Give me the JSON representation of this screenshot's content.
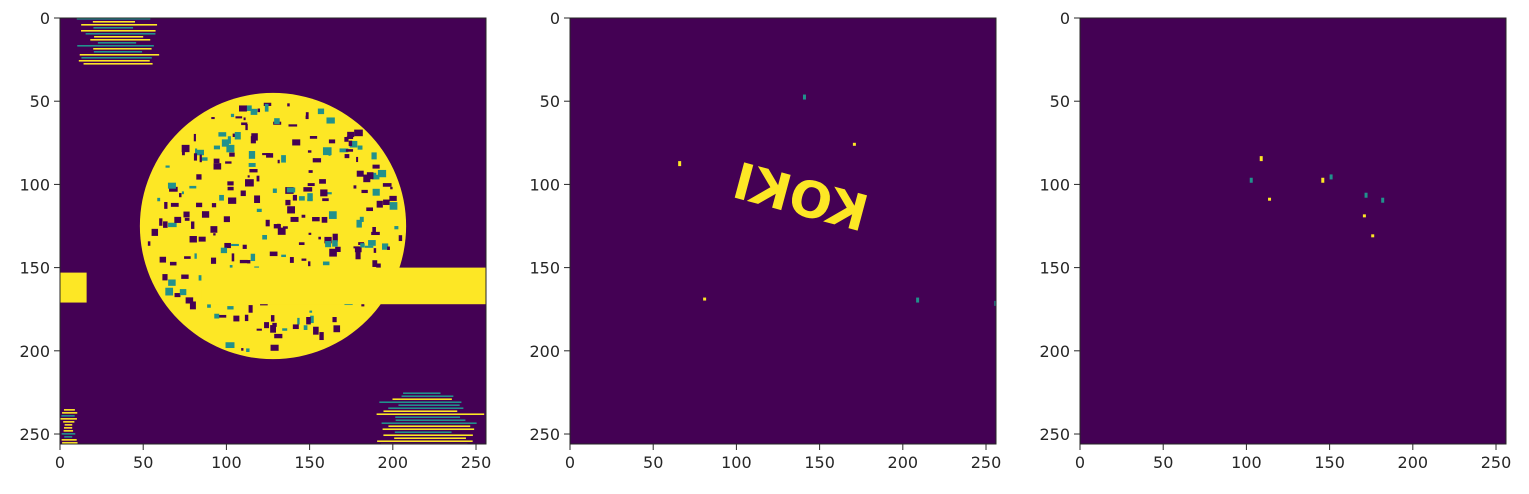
{
  "figure": {
    "background": "#ffffff",
    "colormap": "viridis",
    "colors": {
      "low": "#440154",
      "mid": "#21918c",
      "high": "#fde725",
      "axis": "#262626"
    }
  },
  "chart_data": [
    {
      "type": "heatmap",
      "title": "",
      "xlabel": "",
      "ylabel": "",
      "xlim": [
        0,
        256
      ],
      "ylim": [
        256,
        0
      ],
      "xticks": [
        0,
        50,
        100,
        150,
        200,
        250
      ],
      "yticks": [
        0,
        50,
        100,
        150,
        200,
        250
      ],
      "xtick_labels": [
        "0",
        "50",
        "100",
        "150",
        "200",
        "250"
      ],
      "ytick_labels": [
        "0",
        "50",
        "100",
        "150",
        "200",
        "250"
      ],
      "grid": false,
      "values": "binary mask, mostly 0 background with large 1-valued regions",
      "regions_of_value_1": [
        {
          "shape": "ellipse",
          "cx": 128,
          "cy": 125,
          "rx": 80,
          "ry": 80,
          "texture": "mottled"
        },
        {
          "shape": "band",
          "x": [
            0,
            16
          ],
          "y": [
            153,
            171
          ]
        },
        {
          "shape": "band",
          "x": [
            85,
            256
          ],
          "y": [
            150,
            172
          ]
        },
        {
          "shape": "patch",
          "x": [
            10,
            65
          ],
          "y": [
            0,
            28
          ],
          "texture": "striped"
        },
        {
          "shape": "patch",
          "x": [
            0,
            12
          ],
          "y": [
            235,
            256
          ],
          "texture": "striped"
        },
        {
          "shape": "patch",
          "x": [
            190,
            256
          ],
          "y": [
            225,
            256
          ],
          "texture": "striped"
        }
      ]
    },
    {
      "type": "heatmap",
      "title": "",
      "xlabel": "",
      "ylabel": "",
      "xlim": [
        0,
        256
      ],
      "ylim": [
        256,
        0
      ],
      "xticks": [
        0,
        50,
        100,
        150,
        200,
        250
      ],
      "yticks": [
        0,
        50,
        100,
        150,
        200,
        250
      ],
      "xtick_labels": [
        "0",
        "50",
        "100",
        "150",
        "200",
        "250"
      ],
      "ytick_labels": [
        "0",
        "50",
        "100",
        "150",
        "200",
        "250"
      ],
      "grid": false,
      "values": "binary mask, 0 everywhere except a mirrored text region",
      "text_region": {
        "text": "KOKI",
        "mirrored": true,
        "center": [
          138,
          110
        ],
        "rotation_deg": 15
      },
      "specks": [
        [
          140,
          46
        ],
        [
          65,
          86
        ],
        [
          170,
          75
        ],
        [
          80,
          168
        ],
        [
          208,
          168
        ],
        [
          255,
          170
        ]
      ]
    },
    {
      "type": "heatmap",
      "title": "",
      "xlabel": "",
      "ylabel": "",
      "xlim": [
        0,
        256
      ],
      "ylim": [
        256,
        0
      ],
      "xticks": [
        0,
        50,
        100,
        150,
        200,
        250
      ],
      "yticks": [
        0,
        50,
        100,
        150,
        200,
        250
      ],
      "xtick_labels": [
        "0",
        "50",
        "100",
        "150",
        "200",
        "250"
      ],
      "ytick_labels": [
        "0",
        "50",
        "100",
        "150",
        "200",
        "250"
      ],
      "grid": false,
      "values": "binary mask, 0 everywhere except a few small specks",
      "specks": [
        [
          108,
          83
        ],
        [
          102,
          96
        ],
        [
          113,
          108
        ],
        [
          145,
          96
        ],
        [
          150,
          94
        ],
        [
          171,
          105
        ],
        [
          170,
          118
        ],
        [
          175,
          130
        ],
        [
          181,
          108
        ]
      ]
    }
  ]
}
